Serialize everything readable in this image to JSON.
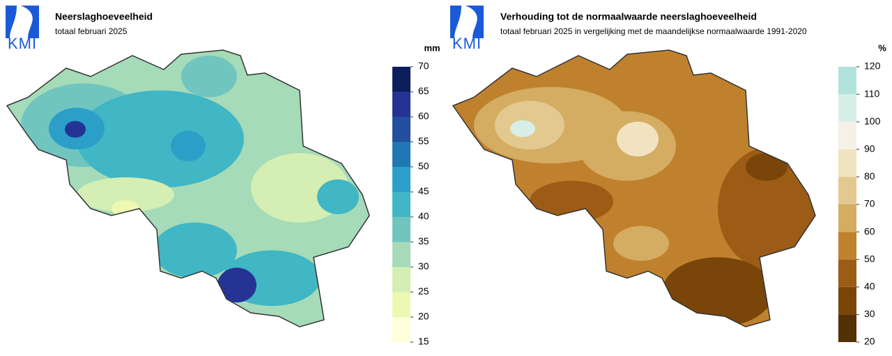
{
  "maps": [
    {
      "logo": "KMI",
      "title": "Neerslaghoeveelheid",
      "subtitle": "totaal februari 2025",
      "legend": {
        "unit": "mm",
        "ticks": [
          15,
          20,
          25,
          30,
          35,
          40,
          45,
          50,
          55,
          60,
          65,
          70
        ],
        "colors": [
          "#ffffd9",
          "#edf8b1",
          "#d4eeb3",
          "#a5dbb8",
          "#70c5bf",
          "#41b6c4",
          "#2b9fc8",
          "#1f78b4",
          "#234fa0",
          "#253494",
          "#0c1f5c"
        ]
      }
    },
    {
      "logo": "KMI",
      "title": "Verhouding tot de normaalwaarde neerslaghoeveelheid",
      "subtitle": "totaal februari 2025 in vergelijking met de maandelijkse normaalwaarde 1991-2020",
      "legend": {
        "unit": "%",
        "ticks": [
          20,
          30,
          40,
          50,
          60,
          70,
          80,
          90,
          100,
          110,
          120
        ],
        "colors": [
          "#543005",
          "#7a4508",
          "#9c5c15",
          "#bf812d",
          "#d4ac62",
          "#e3c98f",
          "#f1e3c0",
          "#f5f1e6",
          "#d8efe9",
          "#b2e2dc"
        ]
      }
    }
  ]
}
